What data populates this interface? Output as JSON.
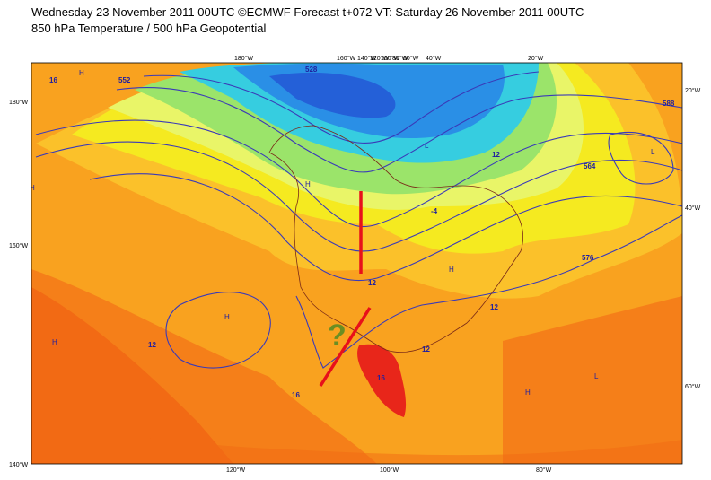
{
  "header": {
    "title": "Wednesday 23 November 2011 00UTC ©ECMWF Forecast t+072 VT: Saturday 26 November 2011 00UTC",
    "subtitle": "850 hPa Temperature / 500 hPa Geopotential"
  },
  "map": {
    "top_labels": [
      "180°W",
      "160°W",
      "140°W",
      "120°W",
      "100°W",
      "80°W",
      "60°W",
      "40°W",
      "20°W"
    ],
    "bottom_labels": [
      "120°W",
      "100°W",
      "80°W"
    ],
    "left_labels": [
      "180°W",
      "160°W",
      "140°W"
    ],
    "right_labels": [
      "20°W",
      "40°W",
      "60°W"
    ],
    "contour_labels": [
      "16",
      "552",
      "576",
      "12",
      "-4",
      "12",
      "16",
      "12",
      "12",
      "16",
      "564",
      "588",
      "12",
      "528"
    ],
    "pressure_centers": [
      "H",
      "H",
      "H",
      "H",
      "L",
      "L",
      "H",
      "L",
      "H",
      "H"
    ],
    "annotation": "?"
  }
}
